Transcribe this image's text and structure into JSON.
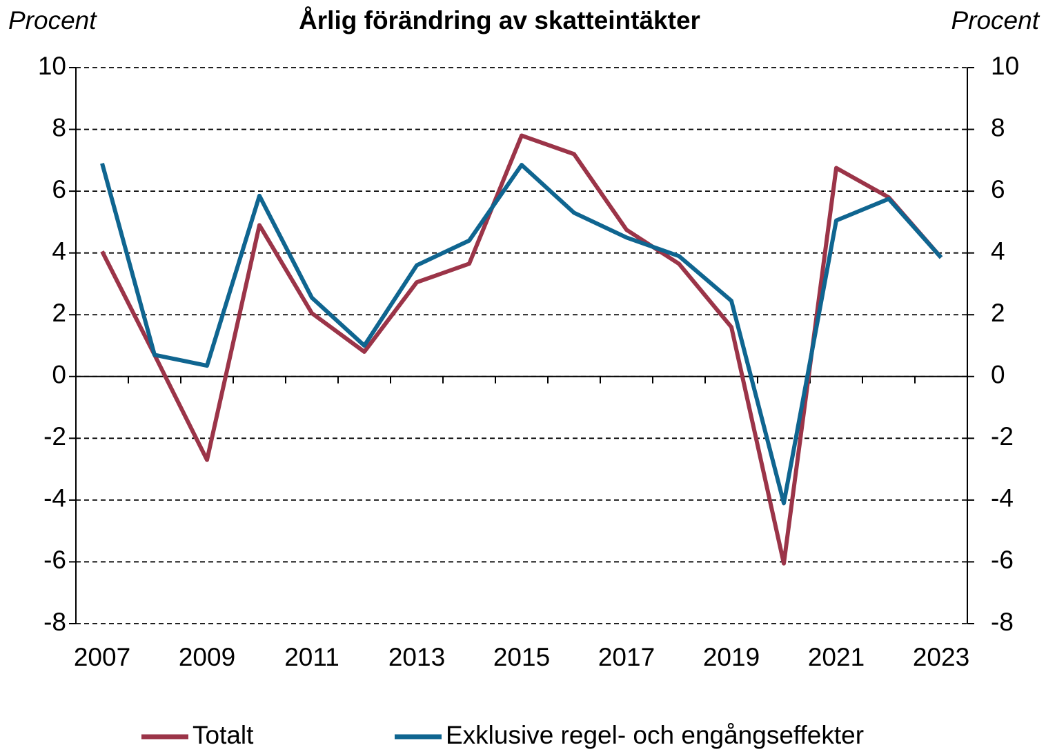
{
  "chart_data": {
    "type": "line",
    "title": "Årlig förändring av skatteintäkter",
    "y_label": "Procent",
    "y2_label": "Procent",
    "categories": [
      "2007",
      null,
      "2009",
      null,
      "2011",
      null,
      "2013",
      null,
      "2015",
      null,
      "2017",
      null,
      "2019",
      null,
      "2021",
      null,
      "2023"
    ],
    "series": [
      {
        "name": "Totalt",
        "color": "#9b3448",
        "values": [
          4.05,
          0.7,
          -2.7,
          4.9,
          2.05,
          0.8,
          3.05,
          3.65,
          7.8,
          7.2,
          4.75,
          3.65,
          1.6,
          -6.05,
          6.75,
          5.8,
          3.85
        ]
      },
      {
        "name": "Exklusive regel- och engångseffekter",
        "color": "#0f6590",
        "values": [
          6.9,
          0.7,
          0.35,
          5.85,
          2.55,
          1.0,
          3.6,
          4.4,
          6.85,
          5.3,
          4.5,
          3.9,
          2.45,
          -4.1,
          5.05,
          5.75,
          3.85
        ]
      }
    ],
    "ylim": [
      -8,
      10
    ],
    "yticks": [
      -8,
      -6,
      -4,
      -2,
      0,
      2,
      4,
      6,
      8,
      10
    ],
    "y2lim": [
      -8,
      10
    ],
    "y2ticks": [
      -8,
      -6,
      -4,
      -2,
      0,
      2,
      4,
      6,
      8,
      10
    ],
    "grid": true,
    "legend": "bottom"
  }
}
